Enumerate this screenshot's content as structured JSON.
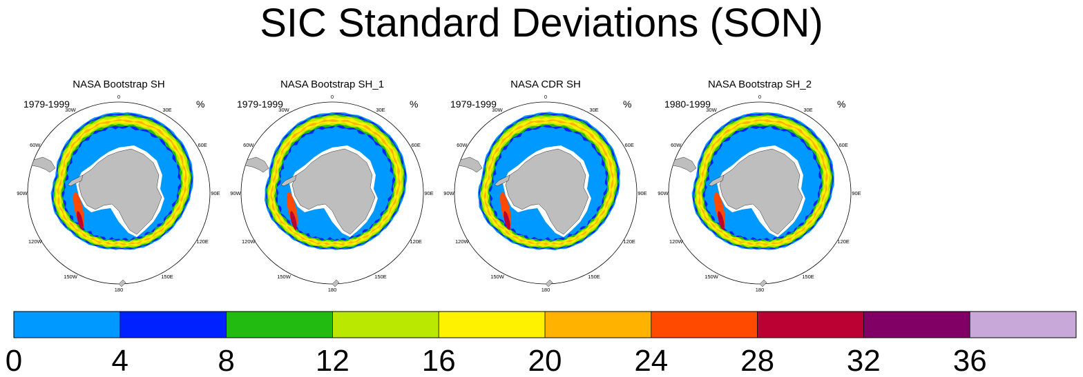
{
  "title": "SIC Standard Deviations (SON)",
  "panels": [
    {
      "title": "NASA Bootstrap SH",
      "period": "1979-1999",
      "units": "%"
    },
    {
      "title": "NASA Bootstrap SH_1",
      "period": "1979-1999",
      "units": "%"
    },
    {
      "title": "NASA CDR SH",
      "period": "1979-1999",
      "units": "%"
    },
    {
      "title": "NASA Bootstrap SH_2",
      "period": "1980-1999",
      "units": "%"
    }
  ],
  "longitude_labels": [
    "0",
    "30E",
    "60E",
    "90E",
    "120E",
    "150E",
    "180",
    "150W",
    "120W",
    "90W",
    "60W",
    "30W"
  ],
  "colorbar": {
    "levels": [
      0,
      4,
      8,
      12,
      16,
      20,
      24,
      28,
      32,
      36
    ],
    "tick_labels": [
      "0",
      "4",
      "8",
      "12",
      "16",
      "20",
      "24",
      "28",
      "32",
      "36"
    ],
    "colors": [
      "#0099ff",
      "#0022ff",
      "#22bb11",
      "#bbe800",
      "#fff200",
      "#ffb300",
      "#ff4a00",
      "#bb0033",
      "#800066",
      "#c8a8d8"
    ]
  },
  "land_color": "#bebebe"
}
